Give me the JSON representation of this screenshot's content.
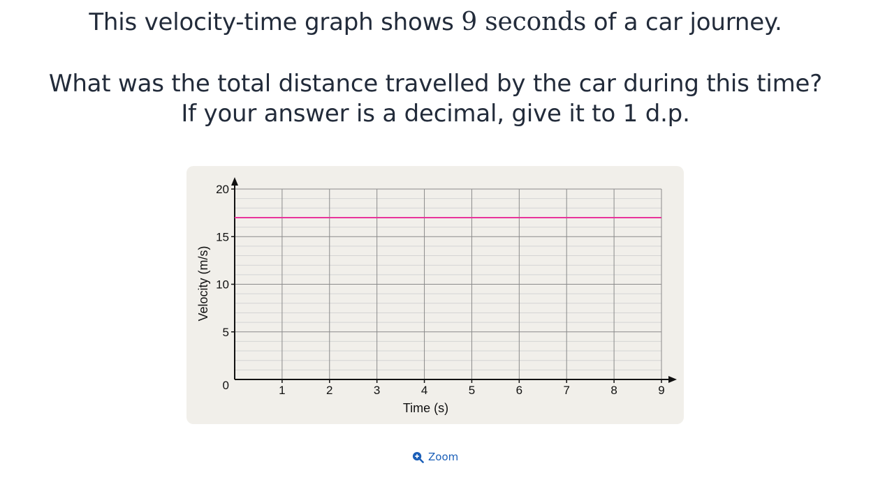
{
  "question": {
    "line1_before": "This velocity-time graph shows ",
    "line1_math": "9 seconds",
    "line1_after": " of a car journey.",
    "line2": "What was the total distance travelled by the car during this time?",
    "line3": "If your answer is a decimal, give it to 1 d.p."
  },
  "zoom": {
    "label": "Zoom",
    "icon": "zoom-in-icon"
  },
  "chart_data": {
    "type": "line",
    "title": "",
    "xlabel": "Time (s)",
    "ylabel": "Velocity (m/s)",
    "xlim": [
      0,
      9
    ],
    "ylim": [
      0,
      20
    ],
    "x_ticks": [
      "1",
      "2",
      "3",
      "4",
      "5",
      "6",
      "7",
      "8",
      "9"
    ],
    "y_ticks": [
      "0",
      "5",
      "10",
      "15",
      "20"
    ],
    "grid": true,
    "series": [
      {
        "x": [
          0,
          9
        ],
        "y": [
          17,
          17
        ],
        "color": "#e8339a"
      }
    ],
    "colors": {
      "background": "#f1efea",
      "grid_major": "#8a8a8a",
      "grid_minor": "#d4d4d4",
      "axis": "#111111"
    }
  }
}
